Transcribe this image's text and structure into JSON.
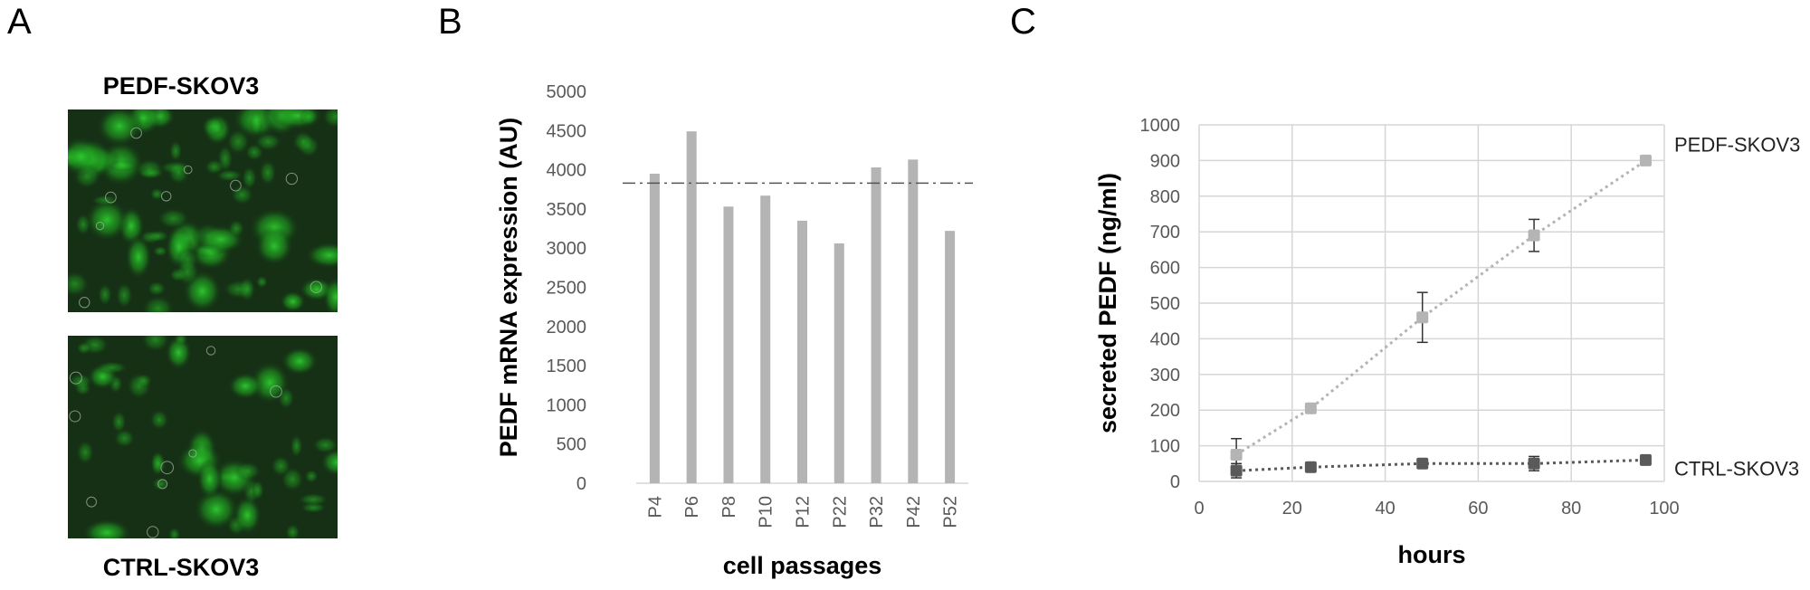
{
  "panels": {
    "a": {
      "letter": "A",
      "top_label": "PEDF-SKOV3",
      "bottom_label": "CTRL-SKOV3"
    },
    "b": {
      "letter": "B"
    },
    "c": {
      "letter": "C"
    }
  },
  "colors": {
    "bar": "#b4b4b4",
    "light_series": "#b4b4b4",
    "dark_series": "#5a5a5a",
    "grid": "#d6d6d6",
    "axis_text": "#595959",
    "fluorescence": "#2ecc2e"
  },
  "chart_data": [
    {
      "type": "bar",
      "categories": [
        "P4",
        "P6",
        "P8",
        "P10",
        "P12",
        "P22",
        "P32",
        "P42",
        "P52"
      ],
      "values": [
        3950,
        4490,
        3530,
        3670,
        3350,
        3060,
        4030,
        4130,
        3220
      ],
      "reference_line": 3830,
      "xlabel": "cell passages",
      "ylabel": "PEDF mRNA expression (AU)",
      "ylim": [
        0,
        5000
      ],
      "yticks": [
        0,
        500,
        1000,
        1500,
        2000,
        2500,
        3000,
        3500,
        4000,
        4500,
        5000
      ],
      "grid": false
    },
    {
      "type": "scatter",
      "xlabel": "hours",
      "ylabel": "secreted PEDF (ng/ml)",
      "xlim": [
        0,
        100
      ],
      "ylim": [
        0,
        1000
      ],
      "xticks": [
        0,
        20,
        40,
        60,
        80,
        100
      ],
      "yticks": [
        0,
        100,
        200,
        300,
        400,
        500,
        600,
        700,
        800,
        900,
        1000
      ],
      "grid": true,
      "series": [
        {
          "name": "PEDF-SKOV3",
          "x": [
            8,
            24,
            48,
            72,
            96
          ],
          "y": [
            75,
            205,
            460,
            690,
            900
          ],
          "err": [
            45,
            8,
            70,
            45,
            8
          ]
        },
        {
          "name": "CTRL-SKOV3",
          "x": [
            8,
            24,
            48,
            72,
            96
          ],
          "y": [
            30,
            40,
            50,
            50,
            60
          ],
          "err": [
            20,
            8,
            8,
            20,
            8
          ]
        }
      ]
    }
  ]
}
